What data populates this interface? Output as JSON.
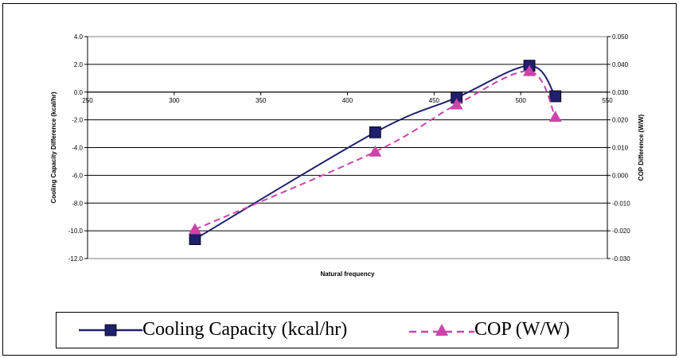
{
  "chart_data": {
    "type": "line",
    "title": "",
    "xlabel": "Natural frequency",
    "ylabel": "Cooling Capacity Difference (kcal/hr)",
    "y2label": "COP Difference (W/W)",
    "xlim": [
      250,
      550
    ],
    "ylim": [
      -12.0,
      4.0
    ],
    "y2lim": [
      -0.03,
      0.05
    ],
    "x_ticks": [
      "250",
      "300",
      "350",
      "400",
      "450",
      "500",
      "550"
    ],
    "y_ticks": [
      "4.0",
      "2.0",
      "0.0",
      "-2.0",
      "-4.0",
      "-6.0",
      "-8.0",
      "-10.0",
      "-12.0"
    ],
    "y2_ticks": [
      "0.050",
      "0.040",
      "0.030",
      "0.020",
      "0.010",
      "0.000",
      "-0.010",
      "-0.020",
      "-0.030"
    ],
    "grid": true,
    "legend_position": "bottom",
    "series": [
      {
        "name": "Cooling Capacity (kcal/hr)",
        "axis": "left",
        "color": "#1f1f6e",
        "marker": "square",
        "line_style": "solid",
        "x": [
          312,
          416,
          463,
          505,
          520
        ],
        "y": [
          -10.6,
          -2.9,
          -0.4,
          1.9,
          -0.3
        ]
      },
      {
        "name": "COP (W/W)",
        "axis": "right",
        "color": "#cc44aa",
        "marker": "triangle",
        "line_style": "dashed",
        "x": [
          312,
          416,
          463,
          505,
          520
        ],
        "y": [
          -0.0195,
          0.0085,
          0.0255,
          0.0375,
          0.021
        ]
      }
    ]
  }
}
